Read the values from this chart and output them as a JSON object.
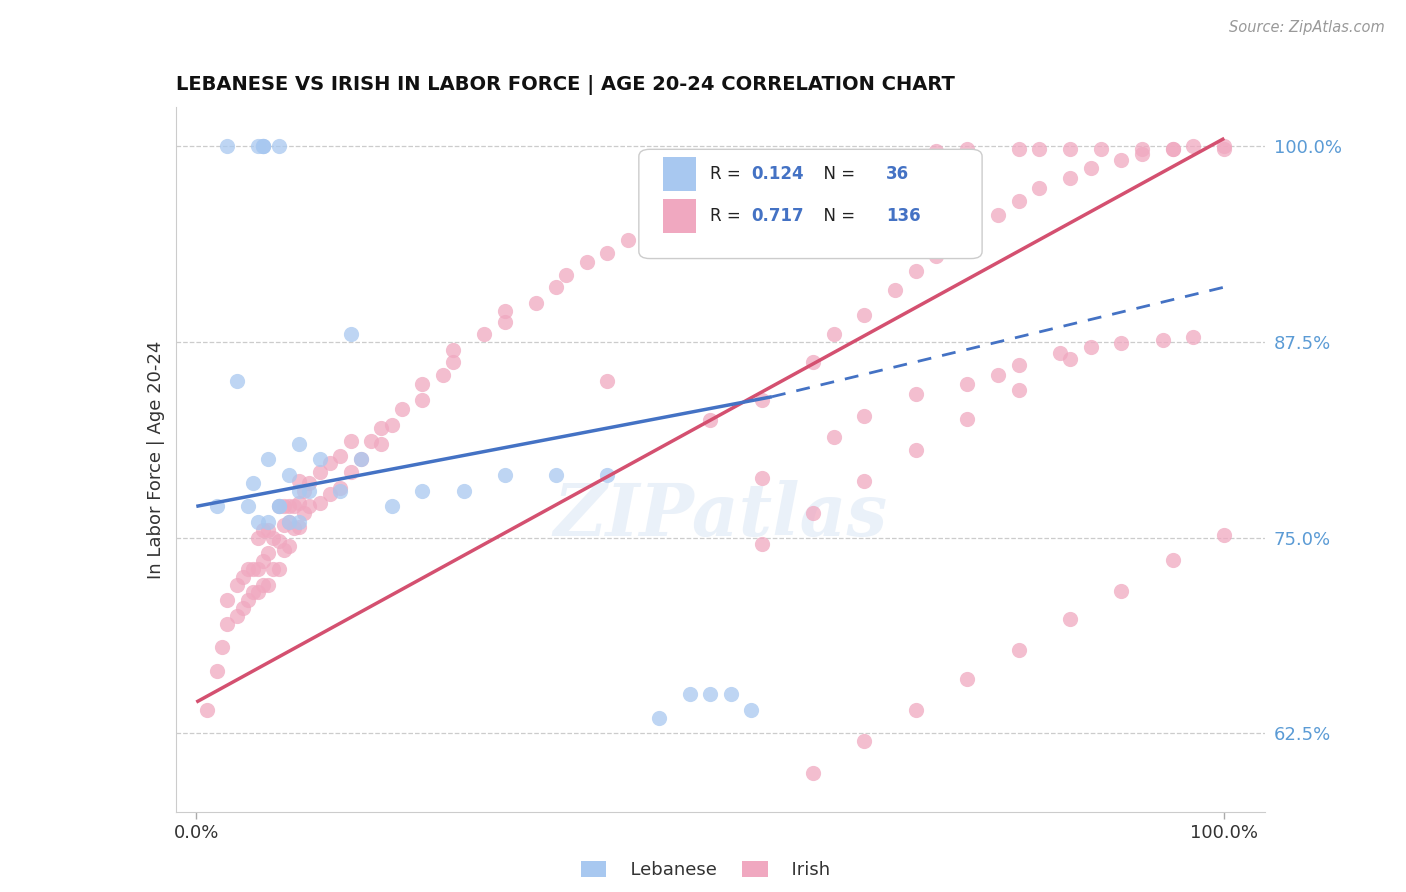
{
  "title": "LEBANESE VS IRISH IN LABOR FORCE | AGE 20-24 CORRELATION CHART",
  "source": "Source: ZipAtlas.com",
  "ylabel": "In Labor Force | Age 20-24",
  "ylabel_right_ticks": [
    "62.5%",
    "75.0%",
    "87.5%",
    "100.0%"
  ],
  "ylabel_right_values": [
    0.625,
    0.75,
    0.875,
    1.0
  ],
  "xtick_left": "0.0%",
  "xtick_right": "100.0%",
  "legend_label1": "Lebanese",
  "legend_label2": "Irish",
  "R_lebanese": 0.124,
  "N_lebanese": 36,
  "R_irish": 0.717,
  "N_irish": 136,
  "color_lebanese": "#a8c8f0",
  "color_irish": "#f0a8c0",
  "trendline_lebanese": "#4472c4",
  "trendline_irish": "#d45070",
  "background": "#ffffff",
  "xlim": [
    -0.02,
    1.04
  ],
  "ylim": [
    0.575,
    1.025
  ],
  "leb_trendline_x0": 0.0,
  "leb_trendline_y0": 0.77,
  "leb_trendline_x1": 0.56,
  "leb_trendline_y1": 0.84,
  "leb_trendline_x2": 1.0,
  "leb_trendline_y2": 0.91,
  "irish_trendline_x0": 0.0,
  "irish_trendline_y0": 0.645,
  "irish_trendline_x1": 1.0,
  "irish_trendline_y1": 1.005,
  "leb_x": [
    0.02,
    0.04,
    0.05,
    0.055,
    0.06,
    0.07,
    0.07,
    0.08,
    0.08,
    0.09,
    0.09,
    0.1,
    0.1,
    0.1,
    0.11,
    0.12,
    0.14,
    0.15,
    0.16,
    0.19,
    0.22,
    0.26,
    0.3,
    0.35,
    0.4,
    0.45,
    0.48,
    0.5,
    0.52,
    0.54,
    0.03,
    0.06,
    0.065,
    0.065,
    0.065,
    0.08
  ],
  "leb_y": [
    0.77,
    0.85,
    0.77,
    0.785,
    0.76,
    0.76,
    0.8,
    0.77,
    0.77,
    0.76,
    0.79,
    0.76,
    0.78,
    0.81,
    0.78,
    0.8,
    0.78,
    0.88,
    0.8,
    0.77,
    0.78,
    0.78,
    0.79,
    0.79,
    0.79,
    0.635,
    0.65,
    0.65,
    0.65,
    0.64,
    1.0,
    1.0,
    1.0,
    1.0,
    1.0,
    1.0
  ],
  "irish_x": [
    0.01,
    0.02,
    0.025,
    0.03,
    0.03,
    0.04,
    0.04,
    0.045,
    0.045,
    0.05,
    0.05,
    0.055,
    0.055,
    0.06,
    0.06,
    0.06,
    0.065,
    0.065,
    0.065,
    0.07,
    0.07,
    0.07,
    0.075,
    0.075,
    0.08,
    0.08,
    0.08,
    0.085,
    0.085,
    0.085,
    0.09,
    0.09,
    0.09,
    0.095,
    0.095,
    0.1,
    0.1,
    0.1,
    0.105,
    0.105,
    0.11,
    0.11,
    0.12,
    0.12,
    0.13,
    0.13,
    0.14,
    0.14,
    0.15,
    0.15,
    0.16,
    0.17,
    0.18,
    0.18,
    0.19,
    0.2,
    0.22,
    0.22,
    0.24,
    0.25,
    0.25,
    0.28,
    0.3,
    0.3,
    0.33,
    0.35,
    0.36,
    0.38,
    0.4,
    0.4,
    0.42,
    0.44,
    0.45,
    0.47,
    0.5,
    0.52,
    0.55,
    0.55,
    0.58,
    0.6,
    0.62,
    0.65,
    0.65,
    0.68,
    0.7,
    0.72,
    0.75,
    0.75,
    0.78,
    0.8,
    0.8,
    0.82,
    0.84,
    0.85,
    0.87,
    0.88,
    0.9,
    0.92,
    0.94,
    0.95,
    0.97,
    1.0,
    0.5,
    0.55,
    0.6,
    0.62,
    0.65,
    0.68,
    0.7,
    0.72,
    0.75,
    0.78,
    0.8,
    0.82,
    0.85,
    0.87,
    0.9,
    0.92,
    0.95,
    0.97,
    1.0,
    0.6,
    0.65,
    0.7,
    0.75,
    0.8,
    0.85,
    0.9,
    0.95,
    1.0,
    0.55,
    0.6,
    0.65,
    0.7,
    0.75,
    0.8,
    0.85
  ],
  "irish_y": [
    0.64,
    0.665,
    0.68,
    0.695,
    0.71,
    0.7,
    0.72,
    0.705,
    0.725,
    0.71,
    0.73,
    0.715,
    0.73,
    0.715,
    0.73,
    0.75,
    0.72,
    0.735,
    0.755,
    0.72,
    0.74,
    0.755,
    0.73,
    0.75,
    0.73,
    0.748,
    0.77,
    0.742,
    0.758,
    0.77,
    0.745,
    0.76,
    0.77,
    0.756,
    0.77,
    0.757,
    0.772,
    0.786,
    0.766,
    0.78,
    0.77,
    0.785,
    0.772,
    0.792,
    0.778,
    0.798,
    0.782,
    0.802,
    0.792,
    0.812,
    0.8,
    0.812,
    0.81,
    0.82,
    0.822,
    0.832,
    0.838,
    0.848,
    0.854,
    0.862,
    0.87,
    0.88,
    0.888,
    0.895,
    0.9,
    0.91,
    0.918,
    0.926,
    0.932,
    0.85,
    0.94,
    0.948,
    0.95,
    0.958,
    0.964,
    0.97,
    0.788,
    0.975,
    0.98,
    0.986,
    0.814,
    0.99,
    0.828,
    0.994,
    0.842,
    0.997,
    0.848,
    0.998,
    0.854,
    0.998,
    0.86,
    0.998,
    0.868,
    0.998,
    0.872,
    0.998,
    0.874,
    0.998,
    0.876,
    0.998,
    0.878,
    0.998,
    0.825,
    0.838,
    0.862,
    0.88,
    0.892,
    0.908,
    0.92,
    0.93,
    0.944,
    0.956,
    0.965,
    0.973,
    0.98,
    0.986,
    0.991,
    0.995,
    0.998,
    1.0,
    1.0,
    0.6,
    0.62,
    0.64,
    0.66,
    0.678,
    0.698,
    0.716,
    0.736,
    0.752,
    0.746,
    0.766,
    0.786,
    0.806,
    0.826,
    0.844,
    0.864
  ]
}
